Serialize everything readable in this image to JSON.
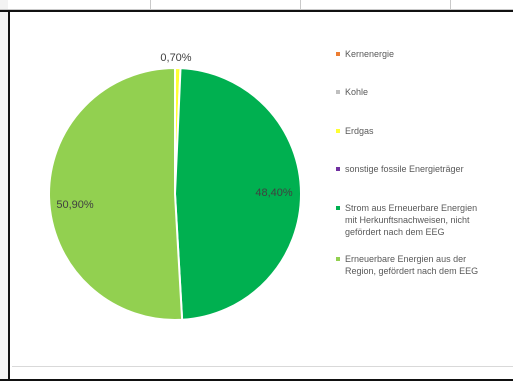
{
  "chart_data": {
    "type": "pie",
    "slices": [
      {
        "name": "Kernenergie",
        "value": 0.0,
        "color": "#ED7D31",
        "label": ""
      },
      {
        "name": "Kohle",
        "value": 0.0,
        "color": "#BFBFBF",
        "label": ""
      },
      {
        "name": "Erdgas",
        "value": 0.7,
        "color": "#FFFF33",
        "label": "0,70%"
      },
      {
        "name": "sonstige fossile Energieträger",
        "value": 0.0,
        "color": "#7030A0",
        "label": ""
      },
      {
        "name": "Strom aus Erneuerbare Energien\nmit Herkunftsnachweisen, nicht\ngefördert nach dem EEG",
        "value": 48.4,
        "color": "#00B050",
        "label": "48,40%"
      },
      {
        "name": "Erneuerbare Energien aus der\nRegion, gefördert nach dem EEG",
        "value": 50.9,
        "color": "#92D050",
        "label": "50,90%"
      }
    ],
    "legend_position": "right"
  }
}
